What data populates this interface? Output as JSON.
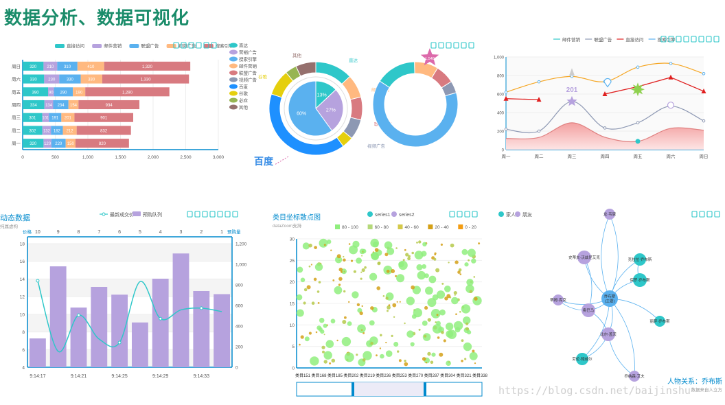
{
  "page": {
    "title": "数据分析、数据可视化",
    "watermark": "https://blog.csdn.net/baijinshu"
  },
  "colors": {
    "title": "#1a8c6a",
    "teal": "#2ec7c9",
    "purple": "#b6a2de",
    "blue": "#5ab1ef",
    "orange": "#ffb980",
    "red": "#d87a80",
    "slate": "#8d98b3",
    "yellow": "#e5cf0d",
    "green": "#97b552",
    "brown": "#95706d",
    "pink": "#dc69aa"
  },
  "chart_data": [
    {
      "id": "stacked_bar",
      "type": "bar",
      "orientation": "horizontal",
      "stacked": true,
      "legend": [
        "直接访问",
        "邮件营销",
        "联盟广告",
        "视频广告",
        "搜索引擎"
      ],
      "legend_placement": "top",
      "categories": [
        "周一",
        "周二",
        "周三",
        "周四",
        "周五",
        "周六",
        "周日"
      ],
      "series": [
        {
          "name": "直接访问",
          "values": [
            320,
            302,
            301,
            334,
            390,
            330,
            320
          ],
          "labels": [
            "320",
            "302",
            "301",
            "334",
            "390",
            "330",
            "320"
          ]
        },
        {
          "name": "邮件营销",
          "values": [
            120,
            132,
            101,
            134,
            90,
            230,
            210
          ],
          "labels": [
            "120",
            "132",
            "101",
            "134",
            "90",
            "230",
            "210"
          ]
        },
        {
          "name": "联盟广告",
          "values": [
            220,
            182,
            191,
            234,
            290,
            330,
            310
          ],
          "labels": [
            "220",
            "182",
            "191",
            "234",
            "290",
            "330",
            "310"
          ]
        },
        {
          "name": "视频广告",
          "values": [
            150,
            212,
            201,
            154,
            190,
            330,
            410
          ],
          "labels": [
            "150",
            "212",
            "201",
            "154",
            "190",
            "330",
            "410"
          ]
        },
        {
          "name": "搜索引擎",
          "values": [
            820,
            832,
            901,
            934,
            1290,
            1330,
            1320
          ],
          "labels": [
            "820",
            "832",
            "901",
            "934",
            "1,290",
            "1,330",
            "1,320"
          ]
        }
      ],
      "xlim": [
        0,
        3000
      ],
      "xticks": [
        "0",
        "500",
        "1,000",
        "1,500",
        "2,000",
        "2,500",
        "3,000"
      ]
    },
    {
      "id": "nested_pie",
      "type": "pie",
      "inner": [
        {
          "name": "",
          "value": 13,
          "label": "13%"
        },
        {
          "name": "",
          "value": 27,
          "label": "27%"
        },
        {
          "name": "",
          "value": 60,
          "label": "60%"
        }
      ],
      "outer_labels": [
        "直达",
        "营销广告",
        "搜索引擎",
        "邮件营销",
        "联盟广告",
        "视频广告",
        "百度",
        "谷歌",
        "必应",
        "其他"
      ],
      "legend": [
        "直达",
        "营销广告",
        "搜索引擎",
        "邮件营销",
        "联盟广告",
        "视频广告",
        "百度",
        "谷歌",
        "必应",
        "其他"
      ],
      "legend_placement": "left",
      "annotation": "百度",
      "right_donut_marker": "1,548"
    },
    {
      "id": "line_area",
      "type": "line",
      "legend": [
        "邮件营销",
        "联盟广告",
        "直接访问",
        "搜索引擎"
      ],
      "legend_placement": "top",
      "categories": [
        "周一",
        "周二",
        "周三",
        "周四",
        "周五",
        "周六",
        "周日"
      ],
      "ylim": [
        0,
        1000
      ],
      "yticks": [
        "0",
        "200",
        "400",
        "600",
        "800",
        "1,000"
      ],
      "series": [
        {
          "name": "邮件营销",
          "values": [
            120,
            132,
            290,
            134,
            90,
            230,
            210
          ]
        },
        {
          "name": "联盟广告",
          "values": [
            220,
            200,
            520,
            234,
            290,
            470,
            310
          ]
        },
        {
          "name": "直接访问",
          "values": [
            550,
            540,
            null,
            600,
            680,
            780,
            630
          ]
        },
        {
          "name": "搜索引擎",
          "values": [
            620,
            732,
            790,
            734,
            890,
            930,
            820
          ]
        }
      ],
      "annotation": "201"
    },
    {
      "id": "dynamic_bar_line",
      "type": "bar",
      "title": "动态数据",
      "subtitle": "纯属虚构",
      "legend": [
        "最新成交价",
        "预购队列"
      ],
      "legend_placement": "top",
      "left_axis_name": "价格",
      "right_axis_name": "预购量",
      "top_categories": [
        "10",
        "9",
        "8",
        "7",
        "6",
        "5",
        "4",
        "3",
        "2",
        "1"
      ],
      "bottom_ticks": [
        "9:14:17",
        "9:14:21",
        "9:14:25",
        "9:14:29",
        "9:14:33"
      ],
      "price_ylim": [
        4,
        18
      ],
      "price_yticks": [
        "4",
        "6",
        "8",
        "10",
        "12",
        "14",
        "16",
        "18"
      ],
      "volume_ylim": [
        0,
        1200
      ],
      "volume_yticks": [
        "0",
        "200",
        "400",
        "600",
        "800",
        "1,000",
        "1,200"
      ],
      "series": [
        {
          "name": "预购队列",
          "type": "bar",
          "values": [
            280,
            980,
            580,
            780,
            705,
            435,
            860,
            1105,
            740,
            710
          ]
        },
        {
          "name": "最新成交价",
          "type": "line",
          "values": [
            13.8,
            5.8,
            9.9,
            7.2,
            6.8,
            13.7,
            9.5,
            10.5,
            10.7,
            10.3
          ]
        }
      ]
    },
    {
      "id": "scatter",
      "type": "scatter",
      "title": "类目坐标散点图",
      "subtitle": "dataZoom支持",
      "legend": [
        "series1",
        "series2"
      ],
      "legend_placement": "top",
      "range_legend": [
        "80 - 100",
        "60 - 80",
        "40 - 60",
        "20 - 40",
        "0 - 20"
      ],
      "ylim": [
        0,
        30
      ],
      "yticks": [
        "0",
        "5",
        "10",
        "15",
        "20",
        "25",
        "30"
      ],
      "xticks": [
        "类目151",
        "类目168",
        "类目185",
        "类目202",
        "类目219",
        "类目236",
        "类目253",
        "类目270",
        "类目287",
        "类目304",
        "类目321",
        "类目338"
      ]
    },
    {
      "id": "force_graph",
      "type": "graph",
      "title": "人物关系：乔布斯",
      "subtitle": "数据来自人立方",
      "legend": [
        "家人",
        "朋友"
      ],
      "legend_placement": "top",
      "nodes": [
        {
          "name": "乔布斯\n(主要)",
          "category": "家人"
        },
        {
          "name": "丽萨·乔布斯",
          "category": "朋友"
        },
        {
          "name": "保罗·乔布斯",
          "category": "家人"
        },
        {
          "name": "克拉拉·乔布斯",
          "category": "家人"
        },
        {
          "name": "劳伦·鲍威尔",
          "category": "家人"
        },
        {
          "name": "史蒂夫·沃兹尼艾克",
          "category": "朋友"
        },
        {
          "name": "奥巴马",
          "category": "朋友"
        },
        {
          "name": "比尔·盖茨",
          "category": "朋友"
        },
        {
          "name": "乔纳森·艾夫",
          "category": "朋友"
        },
        {
          "name": "蒂姆·库克",
          "category": "朋友"
        },
        {
          "name": "龙·韦恩",
          "category": "朋友"
        },
        {
          "name": "妮娜",
          "category": "家人"
        }
      ]
    }
  ]
}
